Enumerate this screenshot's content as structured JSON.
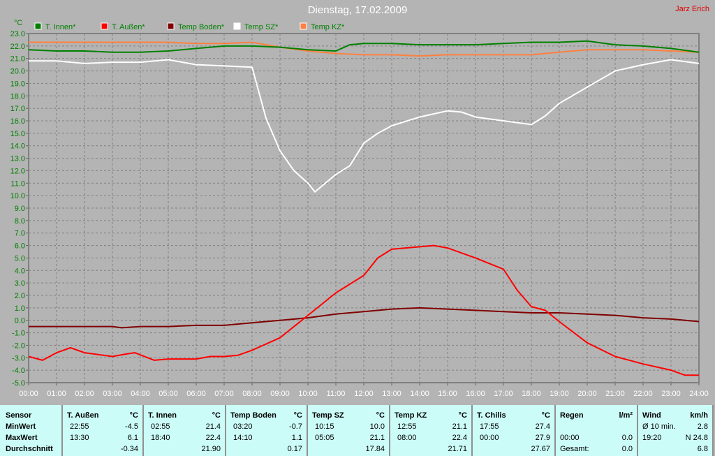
{
  "title": "Dienstag, 17.02.2009",
  "author": "Jarz Erich",
  "chart_data": {
    "type": "line",
    "title": "Dienstag, 17.02.2009",
    "ylabel": "°C",
    "ylim": [
      -5.0,
      23.0
    ],
    "xlim": [
      0,
      24
    ],
    "grid": true,
    "legend_position": "top",
    "x_ticks": [
      "00:00",
      "01:00",
      "02:00",
      "03:00",
      "04:00",
      "05:00",
      "06:00",
      "07:00",
      "08:00",
      "09:00",
      "10:00",
      "11:00",
      "12:00",
      "13:00",
      "14:00",
      "15:00",
      "16:00",
      "17:00",
      "18:00",
      "19:00",
      "20:00",
      "21:00",
      "22:00",
      "23:00",
      "24:00"
    ],
    "y_ticks": [
      "23.0",
      "22.0",
      "21.0",
      "20.0",
      "19.0",
      "18.0",
      "17.0",
      "16.0",
      "15.0",
      "14.0",
      "13.0",
      "12.0",
      "11.0",
      "10.0",
      "9.0",
      "8.0",
      "7.0",
      "6.0",
      "5.0",
      "4.0",
      "3.0",
      "2.0",
      "1.0",
      "0.0",
      "-1.0",
      "-2.0",
      "-3.0",
      "-4.0",
      "-5.0"
    ],
    "series": [
      {
        "name": "T. Innen*",
        "color": "#008000",
        "points": [
          [
            0,
            21.7
          ],
          [
            1,
            21.6
          ],
          [
            2,
            21.6
          ],
          [
            3,
            21.5
          ],
          [
            4,
            21.5
          ],
          [
            5,
            21.6
          ],
          [
            6,
            21.8
          ],
          [
            7,
            22.0
          ],
          [
            8,
            22.0
          ],
          [
            9,
            21.9
          ],
          [
            10,
            21.7
          ],
          [
            11,
            21.6
          ],
          [
            11.5,
            22.1
          ],
          [
            12,
            22.2
          ],
          [
            13,
            22.2
          ],
          [
            14,
            22.1
          ],
          [
            15,
            22.1
          ],
          [
            16,
            22.1
          ],
          [
            17,
            22.2
          ],
          [
            18,
            22.3
          ],
          [
            19,
            22.3
          ],
          [
            20,
            22.4
          ],
          [
            21,
            22.1
          ],
          [
            22,
            22.0
          ],
          [
            23,
            21.8
          ],
          [
            24,
            21.5
          ]
        ]
      },
      {
        "name": "T. Außen*",
        "color": "#ff0000",
        "points": [
          [
            0,
            -2.9
          ],
          [
            0.5,
            -3.2
          ],
          [
            1,
            -2.6
          ],
          [
            1.5,
            -2.2
          ],
          [
            2,
            -2.6
          ],
          [
            3,
            -2.9
          ],
          [
            3.5,
            -2.7
          ],
          [
            3.8,
            -2.6
          ],
          [
            4.5,
            -3.2
          ],
          [
            5,
            -3.1
          ],
          [
            6,
            -3.1
          ],
          [
            6.5,
            -2.9
          ],
          [
            7,
            -2.9
          ],
          [
            7.5,
            -2.8
          ],
          [
            8,
            -2.4
          ],
          [
            9,
            -1.4
          ],
          [
            10,
            0.4
          ],
          [
            11,
            2.2
          ],
          [
            12,
            3.6
          ],
          [
            12.5,
            5.0
          ],
          [
            13,
            5.7
          ],
          [
            14,
            5.9
          ],
          [
            14.5,
            6.0
          ],
          [
            15,
            5.8
          ],
          [
            16,
            5.0
          ],
          [
            17,
            4.1
          ],
          [
            17.5,
            2.4
          ],
          [
            18,
            1.1
          ],
          [
            18.5,
            0.8
          ],
          [
            19,
            -0.1
          ],
          [
            20,
            -1.8
          ],
          [
            21,
            -2.9
          ],
          [
            22,
            -3.5
          ],
          [
            23,
            -4.0
          ],
          [
            23.5,
            -4.4
          ],
          [
            24,
            -4.4
          ]
        ]
      },
      {
        "name": "Temp Boden*",
        "color": "#800000",
        "points": [
          [
            0,
            -0.5
          ],
          [
            1,
            -0.5
          ],
          [
            2,
            -0.5
          ],
          [
            3,
            -0.5
          ],
          [
            3.33,
            -0.6
          ],
          [
            4,
            -0.5
          ],
          [
            5,
            -0.5
          ],
          [
            6,
            -0.4
          ],
          [
            7,
            -0.4
          ],
          [
            8,
            -0.2
          ],
          [
            9,
            0.0
          ],
          [
            10,
            0.2
          ],
          [
            11,
            0.5
          ],
          [
            12,
            0.7
          ],
          [
            13,
            0.9
          ],
          [
            14,
            1.0
          ],
          [
            15,
            0.9
          ],
          [
            16,
            0.8
          ],
          [
            17,
            0.7
          ],
          [
            18,
            0.6
          ],
          [
            19,
            0.6
          ],
          [
            20,
            0.5
          ],
          [
            21,
            0.4
          ],
          [
            22,
            0.2
          ],
          [
            23,
            0.1
          ],
          [
            24,
            -0.1
          ]
        ]
      },
      {
        "name": "Temp SZ*",
        "color": "#ffffff",
        "points": [
          [
            0,
            20.8
          ],
          [
            1,
            20.8
          ],
          [
            2,
            20.6
          ],
          [
            3,
            20.7
          ],
          [
            4,
            20.7
          ],
          [
            5,
            20.9
          ],
          [
            6,
            20.5
          ],
          [
            7,
            20.4
          ],
          [
            8,
            20.3
          ],
          [
            8.5,
            16.2
          ],
          [
            9,
            13.6
          ],
          [
            9.5,
            12.0
          ],
          [
            10,
            11.0
          ],
          [
            10.25,
            10.3
          ],
          [
            11,
            11.7
          ],
          [
            11.5,
            12.4
          ],
          [
            12,
            14.2
          ],
          [
            12.5,
            15.0
          ],
          [
            13,
            15.6
          ],
          [
            14,
            16.3
          ],
          [
            15,
            16.8
          ],
          [
            15.5,
            16.7
          ],
          [
            16,
            16.3
          ],
          [
            17,
            16.0
          ],
          [
            18,
            15.7
          ],
          [
            18.5,
            16.4
          ],
          [
            19,
            17.4
          ],
          [
            20,
            18.7
          ],
          [
            21,
            20.0
          ],
          [
            22,
            20.5
          ],
          [
            23,
            20.9
          ],
          [
            24,
            20.6
          ]
        ]
      },
      {
        "name": "Temp KZ*",
        "color": "#ff8040",
        "points": [
          [
            0,
            22.3
          ],
          [
            1,
            22.3
          ],
          [
            2,
            22.3
          ],
          [
            3,
            22.3
          ],
          [
            4,
            22.3
          ],
          [
            5,
            22.3
          ],
          [
            6,
            22.2
          ],
          [
            7,
            22.2
          ],
          [
            8,
            22.3
          ],
          [
            9,
            21.9
          ],
          [
            10,
            21.6
          ],
          [
            11,
            21.4
          ],
          [
            12,
            21.3
          ],
          [
            13,
            21.3
          ],
          [
            14,
            21.2
          ],
          [
            15,
            21.3
          ],
          [
            16,
            21.3
          ],
          [
            17,
            21.3
          ],
          [
            18,
            21.3
          ],
          [
            19,
            21.5
          ],
          [
            20,
            21.7
          ],
          [
            21,
            21.7
          ],
          [
            22,
            21.7
          ],
          [
            23,
            21.6
          ],
          [
            24,
            21.5
          ]
        ]
      }
    ]
  },
  "stats": {
    "row_labels": [
      "Sensor",
      "MinWert",
      "MaxWert",
      "Durchschnitt"
    ],
    "columns": [
      {
        "name": "T. Außen",
        "unit": "°C",
        "min_time": "22:55",
        "min": "-4.5",
        "max_time": "13:30",
        "max": "6.1",
        "avg": "-0.34"
      },
      {
        "name": "T. Innen",
        "unit": "°C",
        "min_time": "02:55",
        "min": "21.4",
        "max_time": "18:40",
        "max": "22.4",
        "avg": "21.90"
      },
      {
        "name": "Temp Boden",
        "unit": "°C",
        "min_time": "03:20",
        "min": "-0.7",
        "max_time": "14:10",
        "max": "1.1",
        "avg": "0.17"
      },
      {
        "name": "Temp SZ",
        "unit": "°C",
        "min_time": "10:15",
        "min": "10.0",
        "max_time": "05:05",
        "max": "21.1",
        "avg": "17.84"
      },
      {
        "name": "Temp KZ",
        "unit": "°C",
        "min_time": "12:55",
        "min": "21.1",
        "max_time": "08:00",
        "max": "22.4",
        "avg": "21.71"
      },
      {
        "name": "T. Chilis",
        "unit": "°C",
        "min_time": "17:55",
        "min": "27.4",
        "max_time": "00:00",
        "max": "27.9",
        "avg": "27.67"
      },
      {
        "name": "Regen",
        "unit": "l/m²",
        "min_time": "",
        "min": "",
        "max_time": "00:00",
        "max": "0.0",
        "avg_label": "Gesamt:",
        "avg": "0.0"
      },
      {
        "name": "Wind",
        "unit": "km/h",
        "min_time": "Ø 10 min.",
        "min": "2.8",
        "max_time": "19:20",
        "max": "N 24.8",
        "avg": "6.8"
      }
    ]
  }
}
